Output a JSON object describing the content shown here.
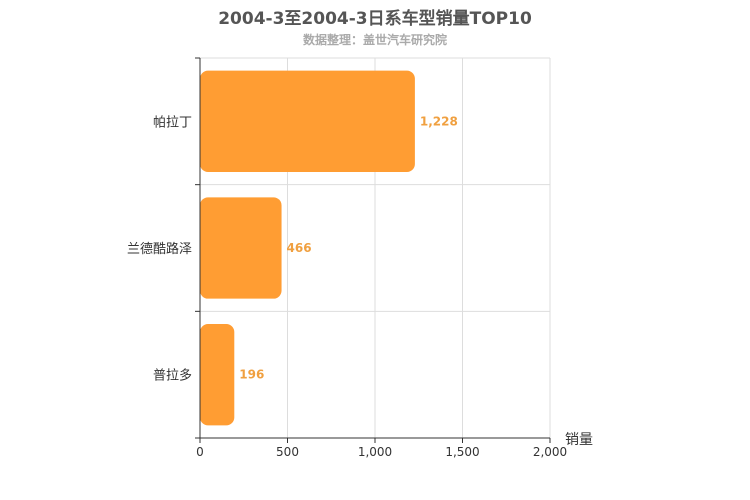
{
  "chart_data": {
    "type": "bar",
    "orientation": "horizontal",
    "title": "2004-3至2004-3日系车型销量TOP10",
    "subtitle": "数据整理：盖世汽车研究院",
    "categories": [
      "帕拉丁",
      "兰德酷路泽",
      "普拉多"
    ],
    "values": [
      1228,
      466,
      196
    ],
    "value_labels": [
      "1,228",
      "466",
      "196"
    ],
    "xlabel": "销量",
    "ylabel": "",
    "xlim": [
      0,
      2000
    ],
    "xticks": [
      0,
      500,
      1000,
      1500,
      2000
    ],
    "xtick_labels": [
      "0",
      "500",
      "1,000",
      "1,500",
      "2,000"
    ],
    "grid": true,
    "colors": {
      "bar": "#FF9D33",
      "label": "#F0A040",
      "axis": "#333333",
      "grid": "#DDDDDD"
    }
  }
}
